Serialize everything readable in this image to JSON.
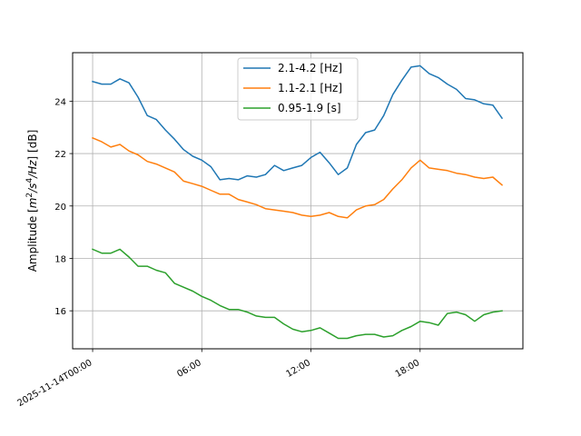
{
  "chart_data": {
    "type": "line",
    "title": "",
    "xlabel": "",
    "ylabel_parts": [
      "Amplitude [",
      "m",
      "2",
      "/",
      "s",
      "4",
      "/",
      "Hz",
      "] [dB]"
    ],
    "ylabel": "Amplitude [m²/s⁴/Hz] [dB]",
    "xlim_hours": [
      -1.1,
      23.65
    ],
    "ylim": [
      14.55,
      25.85
    ],
    "xticks": [
      {
        "hour": 0,
        "label": "2025-11-14T00:00"
      },
      {
        "hour": 6,
        "label": "06:00"
      },
      {
        "hour": 12,
        "label": "12:00"
      },
      {
        "hour": 18,
        "label": "18:00"
      }
    ],
    "yticks": [
      16,
      18,
      20,
      22,
      24
    ],
    "grid": true,
    "legend_position": "top-center",
    "x_hours": [
      0,
      0.5,
      1,
      1.5,
      2,
      2.5,
      3,
      3.5,
      4,
      4.5,
      5,
      5.5,
      6,
      6.5,
      7,
      7.5,
      8,
      8.5,
      9,
      9.5,
      10,
      10.5,
      11,
      11.5,
      12,
      12.5,
      13,
      13.5,
      14,
      14.5,
      15,
      15.5,
      16,
      16.5,
      17,
      17.5,
      18,
      18.5,
      19,
      19.5,
      20,
      20.5,
      21,
      21.5,
      22,
      22.5
    ],
    "series": [
      {
        "name": "2.1-4.2 [Hz]",
        "color": "#1f77b4",
        "values": [
          24.75,
          24.65,
          24.65,
          24.85,
          24.7,
          24.15,
          23.45,
          23.3,
          22.9,
          22.55,
          22.15,
          21.9,
          21.75,
          21.5,
          21.0,
          21.05,
          21.0,
          21.15,
          21.1,
          21.2,
          21.55,
          21.35,
          21.45,
          21.55,
          21.85,
          22.05,
          21.65,
          21.2,
          21.45,
          22.35,
          22.8,
          22.9,
          23.45,
          24.25,
          24.8,
          25.3,
          25.35,
          25.05,
          24.9,
          24.65,
          24.45,
          24.1,
          24.05,
          23.9,
          23.85,
          23.35
        ]
      },
      {
        "name": "1.1-2.1 [Hz]",
        "color": "#ff7f0e",
        "values": [
          22.6,
          22.45,
          22.25,
          22.35,
          22.1,
          21.95,
          21.7,
          21.6,
          21.45,
          21.3,
          20.95,
          20.85,
          20.75,
          20.6,
          20.45,
          20.45,
          20.25,
          20.15,
          20.05,
          19.9,
          19.85,
          19.8,
          19.75,
          19.65,
          19.6,
          19.65,
          19.75,
          19.6,
          19.55,
          19.85,
          20.0,
          20.05,
          20.25,
          20.65,
          21.0,
          21.45,
          21.75,
          21.45,
          21.4,
          21.35,
          21.25,
          21.2,
          21.1,
          21.05,
          21.1,
          20.8
        ]
      },
      {
        "name": "0.95-1.9 [s]",
        "color": "#2ca02c",
        "values": [
          18.35,
          18.2,
          18.2,
          18.35,
          18.05,
          17.7,
          17.7,
          17.55,
          17.45,
          17.05,
          16.9,
          16.75,
          16.55,
          16.4,
          16.2,
          16.05,
          16.05,
          15.95,
          15.8,
          15.75,
          15.75,
          15.5,
          15.3,
          15.2,
          15.25,
          15.35,
          15.15,
          14.95,
          14.95,
          15.05,
          15.1,
          15.1,
          15.0,
          15.05,
          15.25,
          15.4,
          15.6,
          15.55,
          15.45,
          15.9,
          15.95,
          15.85,
          15.6,
          15.85,
          15.95,
          16.0
        ]
      }
    ]
  }
}
